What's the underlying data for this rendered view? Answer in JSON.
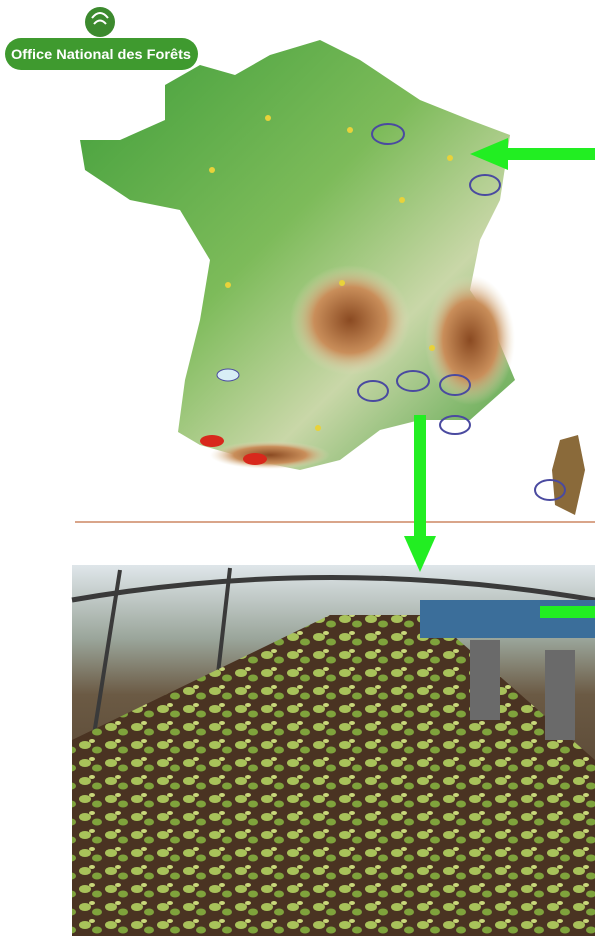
{
  "logo": {
    "text": "Office National des Forêts"
  }
}
